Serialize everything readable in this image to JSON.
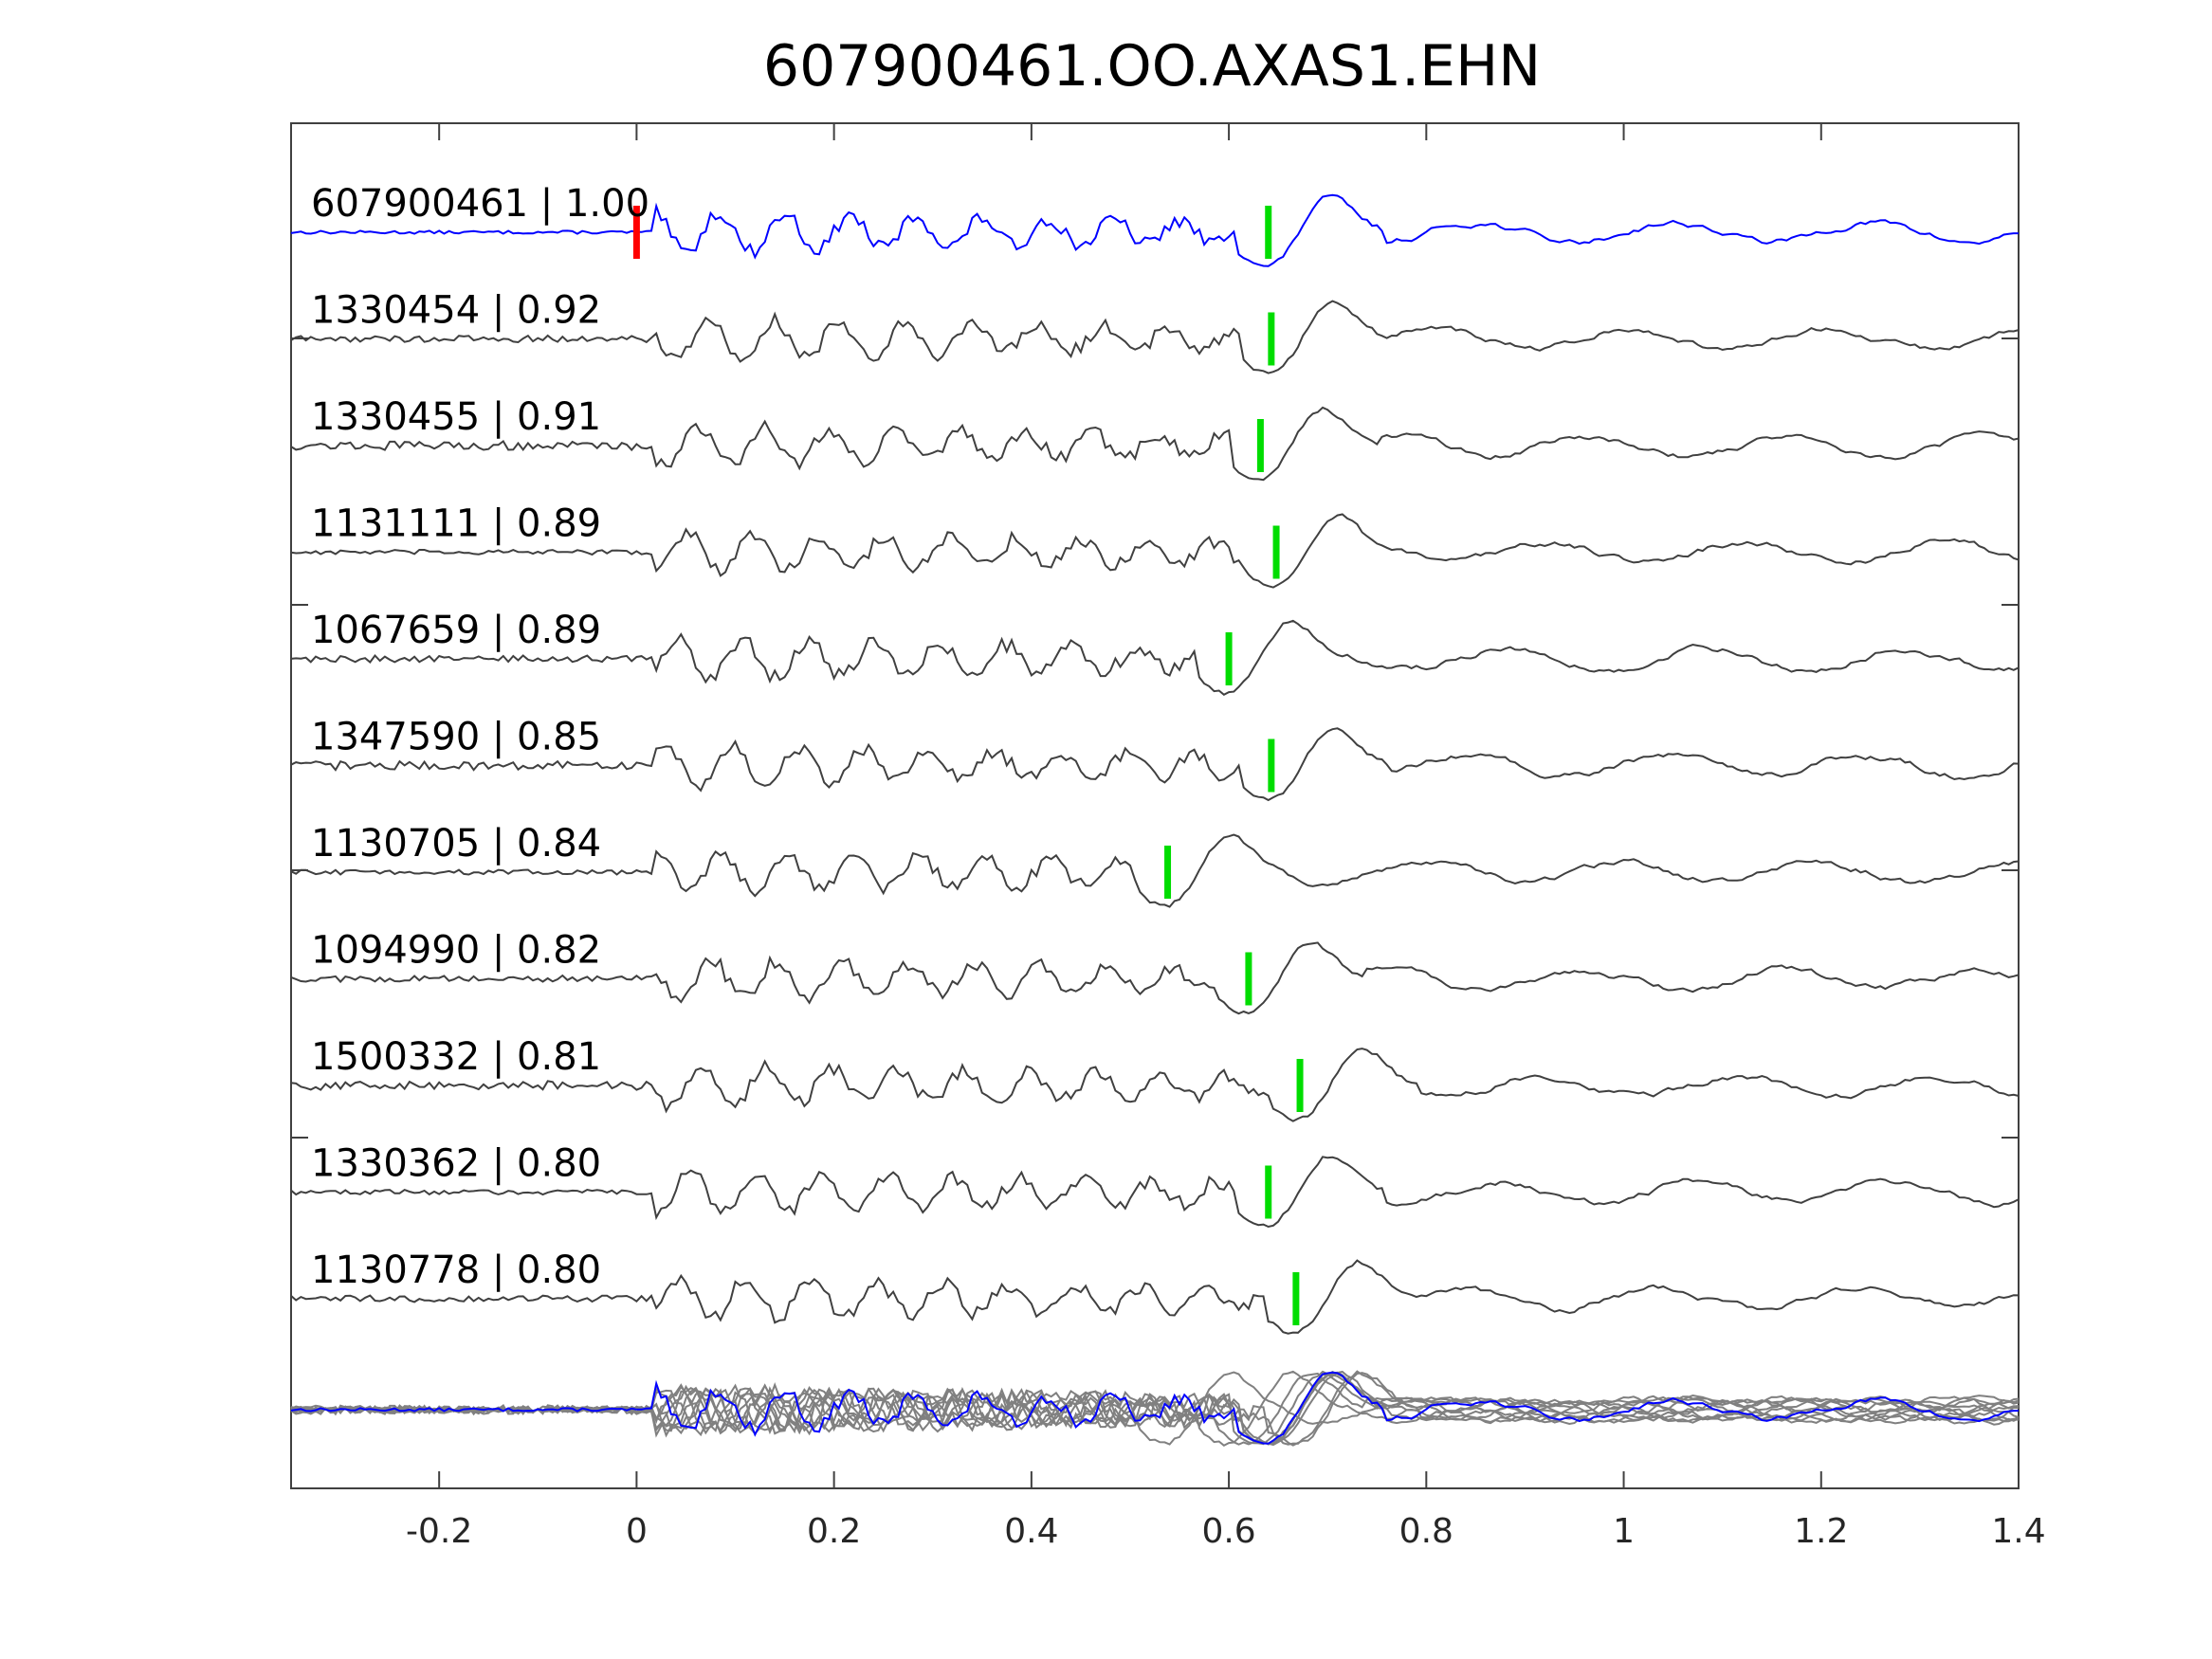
{
  "chart_data": {
    "type": "line",
    "title": "607900461.OO.AXAS1.EHN",
    "xlabel": "",
    "ylabel": "",
    "xlim": [
      -0.35,
      1.4
    ],
    "xticks": [
      "-0.2",
      "0",
      "0.2",
      "0.4",
      "0.6",
      "0.8",
      "1",
      "1.2",
      "1.4"
    ],
    "xtick_values": [
      -0.2,
      0,
      0.2,
      0.4,
      0.6,
      0.8,
      1,
      1.2,
      1.4
    ],
    "reference_pick_time": 0,
    "colors": {
      "reference": "#0000ff",
      "template": "#404040",
      "stack": "#808080",
      "pick": "#00dd00",
      "reference_pick": "#ff0000"
    },
    "series": [
      {
        "id": "607900461",
        "cc": "1.00",
        "label": "607900461 | 1.00",
        "pick_time": 0.64,
        "reference": true
      },
      {
        "id": "1330454",
        "cc": "0.92",
        "label": "1330454 | 0.92",
        "pick_time": 0.643
      },
      {
        "id": "1330455",
        "cc": "0.91",
        "label": "1330455 | 0.91",
        "pick_time": 0.632
      },
      {
        "id": "1131111",
        "cc": "0.89",
        "label": "1131111 | 0.89",
        "pick_time": 0.648
      },
      {
        "id": "1067659",
        "cc": "0.89",
        "label": "1067659 | 0.89",
        "pick_time": 0.6
      },
      {
        "id": "1347590",
        "cc": "0.85",
        "label": "1347590 | 0.85",
        "pick_time": 0.643
      },
      {
        "id": "1130705",
        "cc": "0.84",
        "label": "1130705 | 0.84",
        "pick_time": 0.538
      },
      {
        "id": "1094990",
        "cc": "0.82",
        "label": "1094990 | 0.82",
        "pick_time": 0.62
      },
      {
        "id": "1500332",
        "cc": "0.81",
        "label": "1500332 | 0.81",
        "pick_time": 0.672
      },
      {
        "id": "1330362",
        "cc": "0.80",
        "label": "1330362 | 0.80",
        "pick_time": 0.64
      },
      {
        "id": "1130778",
        "cc": "0.80",
        "label": "1130778 | 0.80",
        "pick_time": 0.668
      }
    ]
  }
}
